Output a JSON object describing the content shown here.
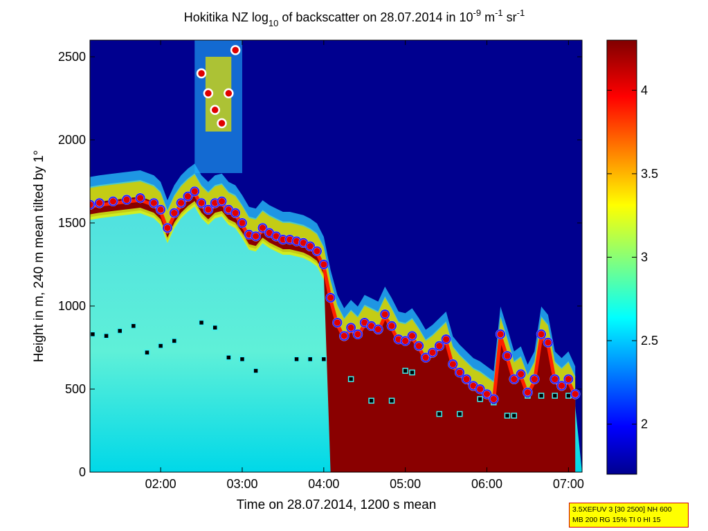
{
  "chart_data": {
    "type": "heatmap",
    "title": "Hokitika NZ log10 of backscatter on 28.07.2014 in 10-9 m-1 sr-1",
    "title_parts": {
      "prefix": "Hokitika NZ log",
      "sub10": "10",
      "middle": " of backscatter on 28.07.2014 in 10",
      "sup_m9": "-9",
      "unit_m": " m",
      "sup_m1": "-1",
      "unit_sr": " sr",
      "sup_sr": "-1"
    },
    "xlabel": "Time on 28.07.2014, 1200 s mean",
    "ylabel": "Height in m, 240 m mean tilted by 1°",
    "xlim": [
      "01:08",
      "07:10"
    ],
    "ylim": [
      0,
      2600
    ],
    "x_ticks": [
      "02:00",
      "03:00",
      "04:00",
      "05:00",
      "06:00",
      "07:00"
    ],
    "y_ticks": [
      0,
      500,
      1000,
      1500,
      2000,
      2500
    ],
    "colorbar": {
      "range": [
        1.7,
        4.3
      ],
      "ticks": [
        "2",
        "2.5",
        "3",
        "3.5",
        "4"
      ],
      "colormap": "jet"
    },
    "cloud_base_series": {
      "name": "cloud base (red dots with blue/white ring)",
      "x": [
        "01:08",
        "01:15",
        "01:25",
        "01:35",
        "01:45",
        "01:55",
        "02:00",
        "02:05",
        "02:10",
        "02:15",
        "02:20",
        "02:25",
        "02:30",
        "02:35",
        "02:40",
        "02:45",
        "02:50",
        "02:55",
        "03:00",
        "03:05",
        "03:10",
        "03:15",
        "03:20",
        "03:25",
        "03:30",
        "03:35",
        "03:40",
        "03:45",
        "03:50",
        "03:55",
        "04:00",
        "04:05",
        "04:10",
        "04:15",
        "04:20",
        "04:25",
        "04:30",
        "04:35",
        "04:40",
        "04:45",
        "04:50",
        "04:55",
        "05:00",
        "05:05",
        "05:10",
        "05:15",
        "05:20",
        "05:25",
        "05:30",
        "05:35",
        "05:40",
        "05:45",
        "05:50",
        "05:55",
        "06:00",
        "06:05",
        "06:10",
        "06:15",
        "06:20",
        "06:25",
        "06:30",
        "06:35",
        "06:40",
        "06:45",
        "06:50",
        "06:55",
        "07:00",
        "07:05"
      ],
      "y": [
        1610,
        1620,
        1630,
        1640,
        1650,
        1620,
        1580,
        1470,
        1560,
        1620,
        1660,
        1690,
        1620,
        1580,
        1620,
        1630,
        1580,
        1560,
        1500,
        1430,
        1420,
        1470,
        1440,
        1420,
        1400,
        1400,
        1390,
        1380,
        1360,
        1330,
        1250,
        1050,
        900,
        820,
        870,
        830,
        900,
        880,
        860,
        950,
        880,
        800,
        790,
        820,
        760,
        690,
        720,
        760,
        800,
        650,
        600,
        560,
        520,
        500,
        470,
        440,
        830,
        700,
        560,
        590,
        480,
        560,
        830,
        780,
        560,
        520,
        560,
        470
      ]
    },
    "upper_cloud_series": {
      "name": "upper cloud detections",
      "x": [
        "02:30",
        "02:35",
        "02:40",
        "02:45",
        "02:50",
        "02:55"
      ],
      "y": [
        2400,
        2280,
        2180,
        2100,
        2280,
        2540
      ]
    },
    "aerosol_layer_series": {
      "name": "aerosol layer (black squares)",
      "x": [
        "01:10",
        "01:20",
        "01:30",
        "01:40",
        "01:50",
        "02:00",
        "02:10",
        "02:30",
        "02:40",
        "02:50",
        "03:00",
        "03:10",
        "03:40",
        "03:50",
        "04:00",
        "04:20",
        "04:35",
        "04:50",
        "05:00",
        "05:05",
        "05:25",
        "05:40",
        "05:55",
        "06:05",
        "06:15",
        "06:20",
        "06:30",
        "06:40",
        "06:50",
        "07:00"
      ],
      "y": [
        830,
        820,
        850,
        880,
        720,
        760,
        790,
        900,
        870,
        690,
        680,
        610,
        680,
        680,
        680,
        560,
        430,
        430,
        610,
        600,
        350,
        350,
        440,
        420,
        340,
        340,
        460,
        460,
        460,
        460
      ]
    }
  },
  "info_box": {
    "line1": "3.5XEFUV 3 [30 2500] NH 600",
    "line2": "MB 200 RG 15% TI 0 HI 15",
    "border_color": "#d00000",
    "background": "#ffff00"
  }
}
